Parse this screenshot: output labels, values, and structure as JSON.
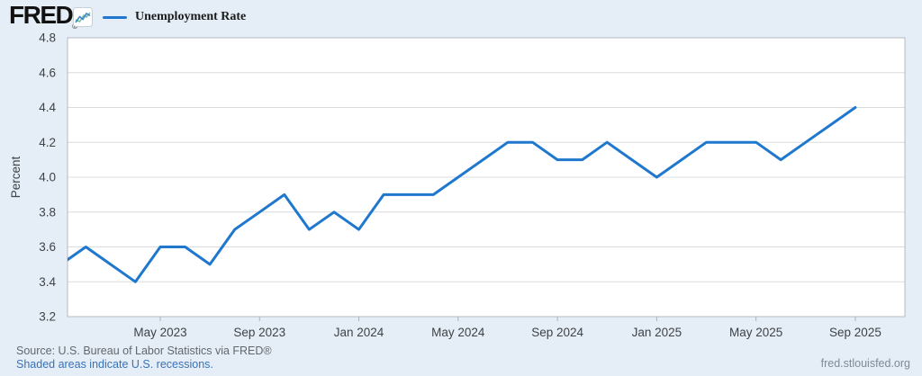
{
  "header": {
    "logo_text": "FRED",
    "registered_mark": "®",
    "legend": {
      "label": "Unemployment Rate"
    }
  },
  "chart_data": {
    "type": "line",
    "title": "Unemployment Rate",
    "ylabel": "Percent",
    "xlabel": "",
    "ylim": [
      3.2,
      4.8
    ],
    "y_ticks": [
      "4.8",
      "4.6",
      "4.4",
      "4.2",
      "4.0",
      "3.8",
      "3.6",
      "3.4",
      "3.2"
    ],
    "grid": true,
    "legend_position": "top-left",
    "x": [
      "Jan 2023",
      "Feb 2023",
      "Mar 2023",
      "Apr 2023",
      "May 2023",
      "Jun 2023",
      "Jul 2023",
      "Aug 2023",
      "Sep 2023",
      "Oct 2023",
      "Nov 2023",
      "Dec 2023",
      "Jan 2024",
      "Feb 2024",
      "Mar 2024",
      "Apr 2024",
      "May 2024",
      "Jun 2024",
      "Jul 2024",
      "Aug 2024",
      "Sep 2024",
      "Oct 2024",
      "Nov 2024",
      "Dec 2024",
      "Jan 2025",
      "Feb 2025",
      "Mar 2025",
      "Apr 2025",
      "May 2025",
      "Jun 2025",
      "Jul 2025",
      "Aug 2025",
      "Sep 2025"
    ],
    "values": [
      3.5,
      3.6,
      3.5,
      3.4,
      3.6,
      3.6,
      3.5,
      3.7,
      3.8,
      3.9,
      3.7,
      3.8,
      3.7,
      3.9,
      3.9,
      3.9,
      4.0,
      4.1,
      4.2,
      4.2,
      4.1,
      4.1,
      4.2,
      4.1,
      4.0,
      4.1,
      4.2,
      4.2,
      4.2,
      4.1,
      4.2,
      4.3,
      4.4
    ],
    "x_tick_labels": [
      {
        "index": 4,
        "label": "May 2023"
      },
      {
        "index": 8,
        "label": "Sep 2023"
      },
      {
        "index": 12,
        "label": "Jan 2024"
      },
      {
        "index": 16,
        "label": "May 2024"
      },
      {
        "index": 20,
        "label": "Sep 2024"
      },
      {
        "index": 24,
        "label": "Jan 2025"
      },
      {
        "index": 28,
        "label": "May 2025"
      },
      {
        "index": 32,
        "label": "Sep 2025"
      }
    ]
  },
  "footer": {
    "source_line": "Source: U.S. Bureau of Labor Statistics via FRED®",
    "recession_note": "Shaded areas indicate U.S. recessions.",
    "site_link": "fred.stlouisfed.org"
  },
  "colors": {
    "background": "#e5edf6",
    "plot_background": "#ffffff",
    "accent_line": "#1f78cd",
    "grid": "#d9dcdf",
    "plot_border": "#b4bac1",
    "tick_mark": "#aab0b6",
    "axis_text": "#3f4346",
    "source_text": "#63686d",
    "link_blue": "#3a72b8",
    "url_text": "#7e8b97",
    "logo_icon_blue": "#3b87c8",
    "logo_icon_green": "#7cbf9e"
  }
}
